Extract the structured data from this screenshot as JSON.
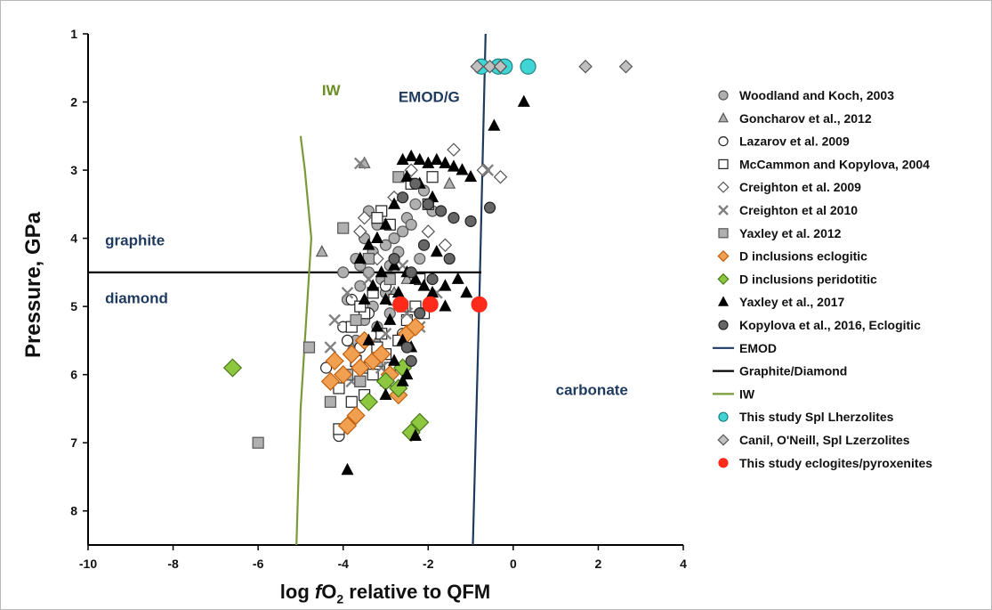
{
  "chart_data": {
    "type": "scatter",
    "x_axis": {
      "label_prefix": "log ",
      "label_italic": "f",
      "label_sub": "O",
      "label_subscript": "2",
      "label_suffix": " relative to QFM",
      "range": [
        -10,
        4
      ],
      "ticks": [
        -10,
        -8,
        -6,
        -4,
        -2,
        0,
        2,
        4
      ]
    },
    "y_axis": {
      "label": "Pressure, GPa",
      "range": [
        1,
        8.5
      ],
      "inverted": true,
      "ticks": [
        1,
        2,
        3,
        4,
        5,
        6,
        7,
        8
      ]
    },
    "grid": false,
    "legend_position": "right",
    "region_labels": [
      {
        "text": "graphite",
        "x": -9.6,
        "y": 4.1,
        "color": "#1f3a5f"
      },
      {
        "text": "diamond",
        "x": -9.6,
        "y": 4.95,
        "color": "#1f3a5f"
      },
      {
        "text": "carbonate",
        "x": 1.0,
        "y": 6.3,
        "color": "#1f3a5f"
      },
      {
        "text": "EMOD/G",
        "x": -2.7,
        "y": 2.0,
        "color": "#1f3a5f"
      },
      {
        "text": "IW",
        "x": -4.5,
        "y": 1.9,
        "color": "#6b8e23"
      }
    ],
    "lines": [
      {
        "name": "EMOD",
        "color": "#1f3a5f",
        "points": [
          [
            -0.65,
            1.0
          ],
          [
            -0.8,
            5.0
          ],
          [
            -0.95,
            8.5
          ]
        ]
      },
      {
        "name": "Graphite/Diamond",
        "color": "#000000",
        "points": [
          [
            -10,
            4.5
          ],
          [
            -0.75,
            4.5
          ]
        ]
      },
      {
        "name": "IW",
        "color": "#7a9a3a",
        "points": [
          [
            -5.0,
            2.5
          ],
          [
            -4.9,
            3.0
          ],
          [
            -4.75,
            4.0
          ],
          [
            -4.9,
            5.5
          ],
          [
            -5.0,
            6.5
          ],
          [
            -5.05,
            7.5
          ],
          [
            -5.1,
            8.5
          ]
        ]
      }
    ],
    "series": [
      {
        "name": "Woodland and Koch, 2003",
        "marker": "circle",
        "fill": "#b0b0b0",
        "stroke": "#555555",
        "points": [
          [
            -4.0,
            4.5
          ],
          [
            -3.7,
            4.3
          ],
          [
            -3.5,
            4.0
          ],
          [
            -3.3,
            4.2
          ],
          [
            -3.2,
            3.8
          ],
          [
            -3.0,
            4.1
          ],
          [
            -2.8,
            4.0
          ],
          [
            -2.6,
            3.9
          ],
          [
            -2.5,
            3.7
          ],
          [
            -2.3,
            3.5
          ],
          [
            -2.1,
            3.3
          ],
          [
            -1.9,
            3.6
          ],
          [
            -3.9,
            4.9
          ],
          [
            -3.6,
            4.7
          ],
          [
            -3.4,
            4.5
          ],
          [
            -3.1,
            4.6
          ],
          [
            -2.9,
            4.4
          ],
          [
            -2.7,
            4.2
          ],
          [
            -3.5,
            5.2
          ],
          [
            -3.3,
            5.0
          ],
          [
            -3.0,
            4.8
          ],
          [
            -2.8,
            4.9
          ],
          [
            -3.7,
            5.5
          ],
          [
            -3.2,
            5.3
          ],
          [
            -2.9,
            5.1
          ],
          [
            -3.4,
            3.6
          ],
          [
            -2.4,
            3.8
          ],
          [
            -3.6,
            4.4
          ],
          [
            -2.2,
            4.3
          ]
        ]
      },
      {
        "name": "Goncharov et al., 2012",
        "marker": "triangle",
        "fill": "#b0b0b0",
        "stroke": "#555555",
        "points": [
          [
            -4.5,
            4.2
          ],
          [
            -3.5,
            2.9
          ],
          [
            -1.5,
            3.2
          ],
          [
            -2.8,
            4.8
          ],
          [
            -3.2,
            5.5
          ],
          [
            -2.0,
            5.0
          ],
          [
            -3.8,
            5.6
          ],
          [
            -3.0,
            6.1
          ],
          [
            -2.5,
            4.6
          ]
        ]
      },
      {
        "name": "Lazarov et al. 2009",
        "marker": "circle",
        "fill": "#ffffff",
        "stroke": "#222222",
        "points": [
          [
            -4.4,
            5.9
          ],
          [
            -4.0,
            5.3
          ],
          [
            -3.6,
            5.6
          ],
          [
            -3.2,
            5.8
          ],
          [
            -3.8,
            4.9
          ],
          [
            -3.0,
            4.7
          ],
          [
            -4.1,
            6.9
          ],
          [
            -3.9,
            5.5
          ],
          [
            -3.4,
            5.1
          ],
          [
            -2.6,
            5.4
          ]
        ]
      },
      {
        "name": "McCammon and Kopylova, 2004",
        "marker": "square",
        "fill": "#ffffff",
        "stroke": "#222222",
        "points": [
          [
            -4.1,
            6.2
          ],
          [
            -3.9,
            6.0
          ],
          [
            -3.8,
            6.4
          ],
          [
            -3.6,
            6.1
          ],
          [
            -3.7,
            5.8
          ],
          [
            -3.5,
            6.3
          ],
          [
            -3.4,
            5.9
          ],
          [
            -3.3,
            6.0
          ],
          [
            -3.2,
            5.6
          ],
          [
            -3.1,
            5.4
          ],
          [
            -3.0,
            5.7
          ],
          [
            -2.9,
            5.9
          ],
          [
            -2.7,
            5.5
          ],
          [
            -2.5,
            5.2
          ],
          [
            -2.3,
            5.0
          ],
          [
            -2.1,
            5.1
          ],
          [
            -3.5,
            5.1
          ],
          [
            -3.3,
            4.8
          ],
          [
            -3.1,
            3.6
          ],
          [
            -2.9,
            3.8
          ],
          [
            -2.4,
            3.2
          ],
          [
            -1.9,
            3.1
          ],
          [
            -2.0,
            3.5
          ],
          [
            -3.6,
            5.0
          ],
          [
            -2.8,
            4.9
          ],
          [
            -2.2,
            4.6
          ],
          [
            -4.1,
            6.8
          ],
          [
            -3.8,
            5.3
          ],
          [
            -3.2,
            3.7
          ]
        ]
      },
      {
        "name": "Creighton et al. 2009",
        "marker": "diamond",
        "fill": "#ffffff",
        "stroke": "#555555",
        "points": [
          [
            -3.5,
            3.7
          ],
          [
            -2.8,
            3.4
          ],
          [
            -2.4,
            3.0
          ],
          [
            -1.4,
            2.7
          ],
          [
            -0.7,
            3.0
          ],
          [
            -0.3,
            3.1
          ],
          [
            -3.2,
            4.3
          ],
          [
            -3.6,
            3.9
          ],
          [
            -2.0,
            3.9
          ],
          [
            -1.6,
            4.1
          ]
        ]
      },
      {
        "name": "Creighton et al 2010",
        "marker": "x",
        "fill": "none",
        "stroke": "#808080",
        "points": [
          [
            -4.2,
            5.2
          ],
          [
            -3.9,
            4.8
          ],
          [
            -3.6,
            2.9
          ],
          [
            -3.0,
            5.4
          ],
          [
            -2.5,
            5.1
          ],
          [
            -2.2,
            5.3
          ],
          [
            -4.3,
            5.6
          ],
          [
            -3.4,
            4.6
          ],
          [
            -3.8,
            6.1
          ],
          [
            -1.8,
            4.8
          ],
          [
            -0.6,
            3.0
          ],
          [
            -2.6,
            4.4
          ],
          [
            -3.1,
            5.9
          ]
        ]
      },
      {
        "name": "Yaxley et al. 2012",
        "marker": "square",
        "fill": "#b0b0b0",
        "stroke": "#555555",
        "points": [
          [
            -6.0,
            7.0
          ],
          [
            -4.8,
            5.6
          ],
          [
            -4.0,
            3.85
          ],
          [
            -2.7,
            3.1
          ],
          [
            -4.3,
            6.4
          ],
          [
            -3.9,
            6.0
          ],
          [
            -3.6,
            6.1
          ],
          [
            -3.2,
            5.8
          ],
          [
            -3.7,
            5.2
          ],
          [
            -2.6,
            5.0
          ],
          [
            -3.4,
            4.3
          ],
          [
            -2.9,
            4.6
          ]
        ]
      },
      {
        "name": "D inclusions eclogitic",
        "marker": "diamond",
        "fill": "#f0a050",
        "stroke": "#c06010",
        "points": [
          [
            -4.3,
            6.1
          ],
          [
            -4.2,
            5.8
          ],
          [
            -4.0,
            6.0
          ],
          [
            -3.9,
            6.75
          ],
          [
            -3.8,
            5.7
          ],
          [
            -3.7,
            6.6
          ],
          [
            -3.5,
            5.5
          ],
          [
            -3.3,
            5.8
          ],
          [
            -3.1,
            5.7
          ],
          [
            -2.9,
            6.0
          ],
          [
            -2.7,
            6.3
          ],
          [
            -2.5,
            5.4
          ],
          [
            -2.3,
            5.3
          ],
          [
            -3.6,
            5.9
          ]
        ]
      },
      {
        "name": "D inclusions peridotitic",
        "marker": "diamond",
        "fill": "#8dc63f",
        "stroke": "#4a7a1a",
        "points": [
          [
            -6.6,
            5.9
          ],
          [
            -3.4,
            6.4
          ],
          [
            -3.0,
            6.1
          ],
          [
            -2.7,
            6.2
          ],
          [
            -2.4,
            6.85
          ],
          [
            -2.2,
            6.7
          ],
          [
            -2.6,
            5.9
          ]
        ]
      },
      {
        "name": "Yaxley et al., 2017",
        "marker": "triangle",
        "fill": "#000000",
        "stroke": "#000000",
        "points": [
          [
            -3.9,
            7.4
          ],
          [
            -2.3,
            6.9
          ],
          [
            0.25,
            2.0
          ],
          [
            -0.45,
            2.35
          ],
          [
            -2.2,
            2.85
          ],
          [
            -2.0,
            2.9
          ],
          [
            -1.8,
            2.85
          ],
          [
            -1.6,
            2.9
          ],
          [
            -1.4,
            2.95
          ],
          [
            -1.2,
            3.0
          ],
          [
            -1.0,
            3.1
          ],
          [
            -2.4,
            2.8
          ],
          [
            -2.6,
            2.85
          ],
          [
            -2.5,
            3.1
          ],
          [
            -2.2,
            3.2
          ],
          [
            -1.9,
            3.4
          ],
          [
            -2.8,
            3.5
          ],
          [
            -3.0,
            3.8
          ],
          [
            -3.2,
            4.0
          ],
          [
            -3.4,
            4.1
          ],
          [
            -3.6,
            4.3
          ],
          [
            -3.1,
            4.5
          ],
          [
            -2.8,
            4.4
          ],
          [
            -2.5,
            4.5
          ],
          [
            -2.3,
            4.6
          ],
          [
            -2.1,
            4.7
          ],
          [
            -1.9,
            4.8
          ],
          [
            -1.6,
            4.7
          ],
          [
            -1.3,
            4.6
          ],
          [
            -1.1,
            4.8
          ],
          [
            -3.3,
            4.7
          ],
          [
            -3.0,
            4.9
          ],
          [
            -2.7,
            4.8
          ],
          [
            -3.5,
            4.9
          ],
          [
            -2.9,
            5.2
          ],
          [
            -2.6,
            5.5
          ],
          [
            -2.4,
            5.6
          ],
          [
            -3.2,
            5.3
          ],
          [
            -2.8,
            5.8
          ],
          [
            -2.5,
            6.0
          ],
          [
            -3.0,
            6.3
          ],
          [
            -2.6,
            6.1
          ],
          [
            -3.4,
            5.5
          ],
          [
            -1.6,
            5.0
          ],
          [
            -1.8,
            4.2
          ]
        ]
      },
      {
        "name": "Kopylova et al., 2016, Eclogitic",
        "marker": "circle",
        "fill": "#666666",
        "stroke": "#222222",
        "points": [
          [
            -2.3,
            3.2
          ],
          [
            -2.0,
            3.5
          ],
          [
            -1.7,
            3.6
          ],
          [
            -1.4,
            3.7
          ],
          [
            -1.0,
            3.75
          ],
          [
            -0.55,
            3.55
          ],
          [
            -2.6,
            3.4
          ],
          [
            -2.1,
            4.1
          ],
          [
            -1.5,
            4.3
          ],
          [
            -2.4,
            4.5
          ],
          [
            -1.9,
            4.6
          ],
          [
            -2.8,
            4.3
          ],
          [
            -2.2,
            5.1
          ],
          [
            -2.5,
            5.6
          ],
          [
            -2.4,
            5.8
          ]
        ]
      },
      {
        "name": "This study Spl Lherzolites",
        "marker": "circle",
        "fill": "#40d4d4",
        "stroke": "#208080",
        "points": [
          [
            -0.75,
            1.48
          ],
          [
            -0.35,
            1.48
          ],
          [
            -0.2,
            1.48
          ],
          [
            0.35,
            1.48
          ]
        ]
      },
      {
        "name": "Canil, O'Neill, Spl Lzerzolites",
        "marker": "diamond",
        "fill": "#c0c0c0",
        "stroke": "#555555",
        "points": [
          [
            -0.85,
            1.48
          ],
          [
            -0.55,
            1.48
          ],
          [
            -0.3,
            1.48
          ],
          [
            1.7,
            1.48
          ],
          [
            2.65,
            1.48
          ]
        ]
      },
      {
        "name": "This study eclogites/pyroxenites",
        "marker": "circle",
        "fill": "#ff2a1a",
        "stroke": "#ff2a1a",
        "points": [
          [
            -2.65,
            4.97
          ],
          [
            -1.95,
            4.97
          ],
          [
            -0.8,
            4.97
          ]
        ]
      }
    ]
  }
}
